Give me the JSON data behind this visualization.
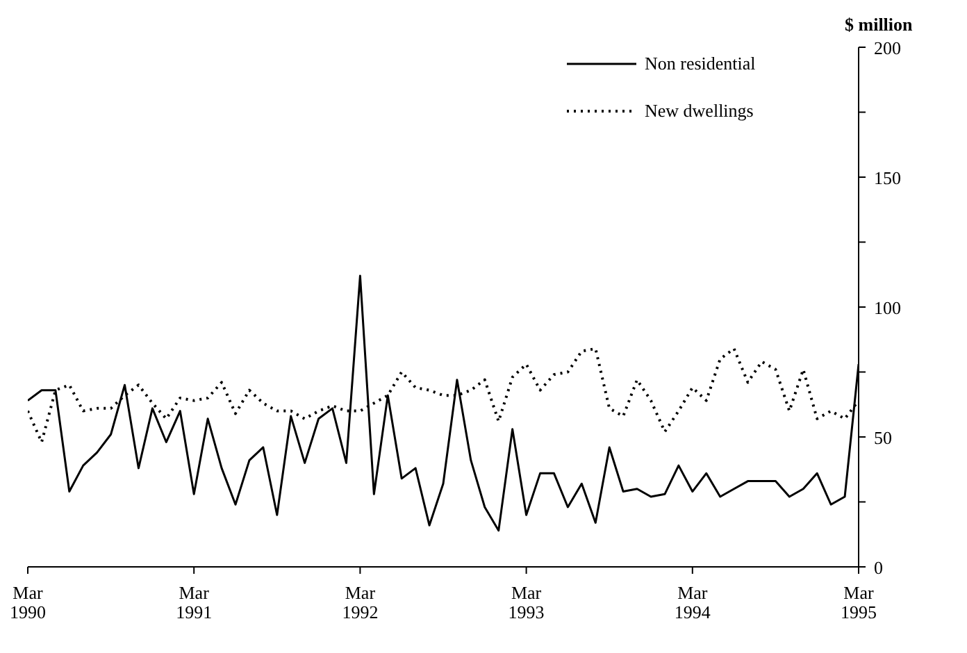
{
  "chart_data": {
    "type": "line",
    "ylabel": "$ million",
    "x": [
      "1990-03",
      "1990-04",
      "1990-05",
      "1990-06",
      "1990-07",
      "1990-08",
      "1990-09",
      "1990-10",
      "1990-11",
      "1990-12",
      "1991-01",
      "1991-02",
      "1991-03",
      "1991-04",
      "1991-05",
      "1991-06",
      "1991-07",
      "1991-08",
      "1991-09",
      "1991-10",
      "1991-11",
      "1991-12",
      "1992-01",
      "1992-02",
      "1992-03",
      "1992-04",
      "1992-05",
      "1992-06",
      "1992-07",
      "1992-08",
      "1992-09",
      "1992-10",
      "1992-11",
      "1992-12",
      "1993-01",
      "1993-02",
      "1993-03",
      "1993-04",
      "1993-05",
      "1993-06",
      "1993-07",
      "1993-08",
      "1993-09",
      "1993-10",
      "1993-11",
      "1993-12",
      "1994-01",
      "1994-02",
      "1994-03",
      "1994-04",
      "1994-05",
      "1994-06",
      "1994-07",
      "1994-08",
      "1994-09",
      "1994-10",
      "1994-11",
      "1994-12",
      "1995-01",
      "1995-02",
      "1995-03"
    ],
    "series": [
      {
        "name": "Non residential",
        "color": "#000000",
        "line_style": "solid",
        "values": [
          64,
          68,
          68,
          29,
          39,
          44,
          51,
          70,
          38,
          61,
          48,
          60,
          28,
          57,
          38,
          24,
          41,
          46,
          20,
          58,
          40,
          57,
          61,
          40,
          112,
          28,
          66,
          34,
          38,
          16,
          32,
          72,
          41,
          23,
          14,
          53,
          20,
          36,
          36,
          23,
          32,
          17,
          46,
          29,
          30,
          27,
          28,
          39,
          29,
          36,
          27,
          30,
          33,
          33,
          33,
          27,
          30,
          36,
          24,
          27,
          78
        ]
      },
      {
        "name": "New dwellings",
        "color": "#000000",
        "line_style": "dotted",
        "values": [
          60,
          48,
          68,
          70,
          60,
          61,
          61,
          66,
          70,
          63,
          57,
          65,
          64,
          65,
          71,
          59,
          68,
          63,
          60,
          60,
          57,
          60,
          62,
          60,
          60,
          63,
          66,
          75,
          69,
          68,
          66,
          66,
          68,
          72,
          56,
          73,
          78,
          68,
          74,
          75,
          83,
          84,
          61,
          58,
          72,
          64,
          52,
          60,
          69,
          64,
          80,
          84,
          71,
          79,
          76,
          60,
          76,
          57,
          60,
          57,
          64
        ]
      }
    ],
    "xlim": [
      "1990-03",
      "1995-03"
    ],
    "xticks": [
      {
        "value": "1990-03",
        "label": "Mar 1990"
      },
      {
        "value": "1991-03",
        "label": "Mar 1991"
      },
      {
        "value": "1992-03",
        "label": "Mar 1992"
      },
      {
        "value": "1993-03",
        "label": "Mar 1993"
      },
      {
        "value": "1994-03",
        "label": "Mar 1994"
      },
      {
        "value": "1995-03",
        "label": "Mar 1995"
      }
    ],
    "ylim": [
      0,
      200
    ],
    "yticks": [
      0,
      {
        "value": 25,
        "label": null
      },
      50,
      {
        "value": 75,
        "label": null
      },
      100,
      {
        "value": 125,
        "label": null
      },
      150,
      {
        "value": 175,
        "label": null
      },
      200
    ],
    "marker": "none",
    "legend": "top right"
  }
}
